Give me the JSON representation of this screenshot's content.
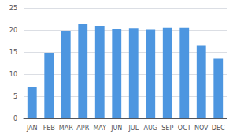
{
  "chart_data": {
    "type": "bar",
    "categories": [
      "JAN",
      "FEB",
      "MAR",
      "APR",
      "MAY",
      "JUN",
      "JUL",
      "AUG",
      "SEP",
      "OCT",
      "NOV",
      "DEC"
    ],
    "values": [
      7.1,
      14.8,
      19.8,
      21.3,
      20.9,
      20.2,
      20.3,
      20.1,
      20.6,
      20.6,
      16.5,
      13.5
    ],
    "color": "#4D96E0",
    "ylim": [
      0,
      25
    ],
    "yticks": [
      0,
      5,
      10,
      15,
      20,
      25
    ],
    "grid": true
  }
}
